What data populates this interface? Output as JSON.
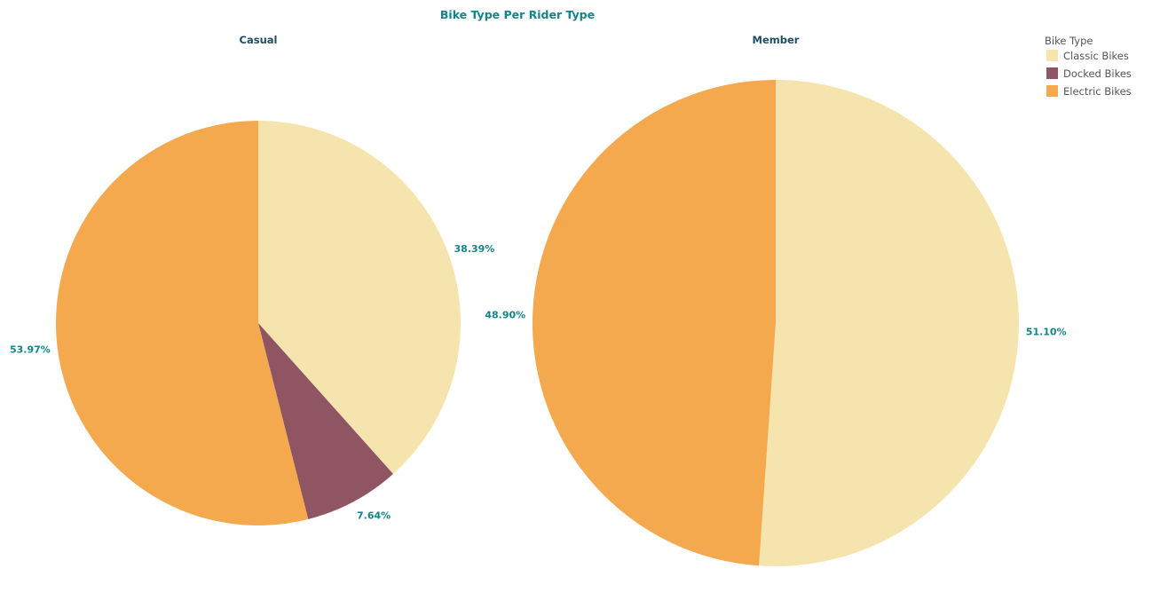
{
  "chart_data": {
    "type": "pie",
    "title": "Bike Type Per Rider Type",
    "legend": {
      "title": "Bike Type",
      "placement": "top-right",
      "items": [
        {
          "label": "Classic Bikes",
          "color": "#f6e4ae"
        },
        {
          "label": "Docked Bikes",
          "color": "#905562"
        },
        {
          "label": "Electric Bikes",
          "color": "#f4a94f"
        }
      ]
    },
    "panes": [
      {
        "name": "Casual",
        "slices": [
          {
            "category": "Classic Bikes",
            "value": 38.39,
            "label": "38.39%"
          },
          {
            "category": "Docked Bikes",
            "value": 7.64,
            "label": "7.64%"
          },
          {
            "category": "Electric Bikes",
            "value": 53.97,
            "label": "53.97%"
          }
        ]
      },
      {
        "name": "Member",
        "slices": [
          {
            "category": "Classic Bikes",
            "value": 51.1,
            "label": "51.10%"
          },
          {
            "category": "Electric Bikes",
            "value": 48.9,
            "label": "48.90%"
          }
        ]
      }
    ]
  }
}
